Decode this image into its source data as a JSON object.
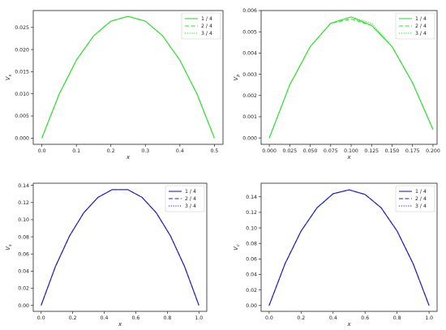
{
  "chart_data": [
    {
      "type": "line",
      "title": "",
      "xlabel": "x",
      "ylabel": "V_s",
      "ylabel_main": "V",
      "ylabel_sub": "s",
      "xlim": [
        -0.025,
        0.525
      ],
      "ylim": [
        -0.0014,
        0.0288
      ],
      "xticks": [
        0.0,
        0.1,
        0.2,
        0.3,
        0.4,
        0.5
      ],
      "xtick_labels": [
        "0.0",
        "0.1",
        "0.2",
        "0.3",
        "0.4",
        "0.5"
      ],
      "yticks": [
        0.0,
        0.005,
        0.01,
        0.015,
        0.02,
        0.025
      ],
      "ytick_labels": [
        "0.000",
        "0.005",
        "0.010",
        "0.015",
        "0.020",
        "0.025"
      ],
      "legend_position": "top-right",
      "color": "#33dd33",
      "series": [
        {
          "name": "1 / 4",
          "style": "solid",
          "x": [
            0,
            0.05,
            0.1,
            0.15,
            0.2,
            0.25,
            0.3,
            0.35,
            0.4,
            0.45,
            0.5
          ],
          "values": [
            0,
            0.0099,
            0.0176,
            0.0231,
            0.0264,
            0.0275,
            0.0264,
            0.0231,
            0.0176,
            0.0099,
            0
          ]
        },
        {
          "name": "2 / 4",
          "style": "dashed",
          "x": [
            0,
            0.05,
            0.1,
            0.15,
            0.2,
            0.25,
            0.3,
            0.35,
            0.4,
            0.45,
            0.5
          ],
          "values": [
            0,
            0.0099,
            0.0176,
            0.0231,
            0.0264,
            0.0275,
            0.0264,
            0.0231,
            0.0176,
            0.0099,
            0
          ]
        },
        {
          "name": "3 / 4",
          "style": "dotted",
          "x": [
            0,
            0.05,
            0.1,
            0.15,
            0.2,
            0.25,
            0.3,
            0.35,
            0.4,
            0.45,
            0.5
          ],
          "values": [
            0,
            0.0099,
            0.0176,
            0.0231,
            0.0264,
            0.0275,
            0.0264,
            0.0231,
            0.0176,
            0.0099,
            0
          ]
        }
      ]
    },
    {
      "type": "line",
      "title": "",
      "xlabel": "x",
      "ylabel": "V_p",
      "ylabel_main": "V",
      "ylabel_sub": "p",
      "xlim": [
        -0.01,
        0.205
      ],
      "ylim": [
        -0.0003,
        0.006
      ],
      "xticks": [
        0.0,
        0.025,
        0.05,
        0.075,
        0.1,
        0.125,
        0.15,
        0.175,
        0.2
      ],
      "xtick_labels": [
        "0.000",
        "0.025",
        "0.050",
        "0.075",
        "0.100",
        "0.125",
        "0.150",
        "0.175",
        "0.200"
      ],
      "yticks": [
        0.0,
        0.001,
        0.002,
        0.003,
        0.004,
        0.005,
        0.006
      ],
      "ytick_labels": [
        "0.000",
        "0.001",
        "0.002",
        "0.003",
        "0.004",
        "0.005",
        "0.006"
      ],
      "legend_position": "top-right",
      "color": "#33dd33",
      "series": [
        {
          "name": "1 / 4",
          "style": "solid",
          "x": [
            0,
            0.025,
            0.05,
            0.075,
            0.1,
            0.125,
            0.15,
            0.175,
            0.2
          ],
          "values": [
            0,
            0.0025,
            0.0043,
            0.0054,
            0.0057,
            0.0053,
            0.0043,
            0.0026,
            0.0004
          ]
        },
        {
          "name": "2 / 4",
          "style": "dashed",
          "x": [
            0,
            0.025,
            0.05,
            0.075,
            0.1,
            0.125,
            0.15,
            0.175,
            0.2
          ],
          "values": [
            0,
            0.0025,
            0.0043,
            0.0054,
            0.0056,
            0.0053,
            0.0043,
            0.0026,
            0.0004
          ]
        },
        {
          "name": "3 / 4",
          "style": "dotted",
          "x": [
            0,
            0.025,
            0.05,
            0.075,
            0.1,
            0.125,
            0.15,
            0.175,
            0.2
          ],
          "values": [
            0,
            0.0025,
            0.0043,
            0.0054,
            0.0057,
            0.0054,
            0.0043,
            0.0026,
            0.0004
          ]
        }
      ]
    },
    {
      "type": "line",
      "title": "",
      "xlabel": "x",
      "ylabel": "V_s",
      "ylabel_main": "V",
      "ylabel_sub": "s",
      "xlim": [
        -0.05,
        1.05
      ],
      "ylim": [
        -0.007,
        0.1425
      ],
      "xticks": [
        0.0,
        0.2,
        0.4,
        0.6,
        0.8,
        1.0
      ],
      "xtick_labels": [
        "0.0",
        "0.2",
        "0.4",
        "0.6",
        "0.8",
        "1.0"
      ],
      "yticks": [
        0.0,
        0.02,
        0.04,
        0.06,
        0.08,
        0.1,
        0.12,
        0.14
      ],
      "ytick_labels": [
        "0.00",
        "0.02",
        "0.04",
        "0.06",
        "0.08",
        "0.10",
        "0.12",
        "0.14"
      ],
      "legend_position": "top-right",
      "color": "#2222bb",
      "series": [
        {
          "name": "1 / 4",
          "style": "solid",
          "x": [
            0,
            0.09,
            0.18,
            0.27,
            0.36,
            0.45,
            0.55,
            0.64,
            0.73,
            0.82,
            0.91,
            1.0
          ],
          "values": [
            0,
            0.045,
            0.081,
            0.108,
            0.126,
            0.135,
            0.135,
            0.126,
            0.108,
            0.081,
            0.045,
            0
          ]
        },
        {
          "name": "2 / 4",
          "style": "dashed",
          "x": [
            0,
            0.09,
            0.18,
            0.27,
            0.36,
            0.45,
            0.55,
            0.64,
            0.73,
            0.82,
            0.91,
            1.0
          ],
          "values": [
            0,
            0.045,
            0.081,
            0.108,
            0.126,
            0.135,
            0.135,
            0.126,
            0.108,
            0.081,
            0.045,
            0
          ]
        },
        {
          "name": "3 / 4",
          "style": "dotted",
          "x": [
            0,
            0.09,
            0.18,
            0.27,
            0.36,
            0.45,
            0.55,
            0.64,
            0.73,
            0.82,
            0.91,
            1.0
          ],
          "values": [
            0,
            0.045,
            0.081,
            0.108,
            0.126,
            0.135,
            0.135,
            0.126,
            0.108,
            0.081,
            0.045,
            0
          ]
        }
      ]
    },
    {
      "type": "line",
      "title": "",
      "xlabel": "x",
      "ylabel": "V_c",
      "ylabel_main": "V",
      "ylabel_sub": "c",
      "xlim": [
        -0.05,
        1.05
      ],
      "ylim": [
        -0.0075,
        0.1575
      ],
      "xticks": [
        0.0,
        0.2,
        0.4,
        0.6,
        0.8,
        1.0
      ],
      "xtick_labels": [
        "0.0",
        "0.2",
        "0.4",
        "0.6",
        "0.8",
        "1.0"
      ],
      "yticks": [
        0.0,
        0.02,
        0.04,
        0.06,
        0.08,
        0.1,
        0.12,
        0.14
      ],
      "ytick_labels": [
        "0.00",
        "0.02",
        "0.04",
        "0.06",
        "0.08",
        "0.10",
        "0.12",
        "0.14"
      ],
      "legend_position": "top-right",
      "color": "#2222bb",
      "series": [
        {
          "name": "1 / 4",
          "style": "solid",
          "x": [
            0,
            0.1,
            0.2,
            0.3,
            0.4,
            0.5,
            0.6,
            0.7,
            0.8,
            0.9,
            1.0
          ],
          "values": [
            0,
            0.054,
            0.096,
            0.126,
            0.144,
            0.149,
            0.143,
            0.126,
            0.096,
            0.054,
            0
          ]
        },
        {
          "name": "2 / 4",
          "style": "dashed",
          "x": [
            0,
            0.1,
            0.2,
            0.3,
            0.4,
            0.5,
            0.6,
            0.7,
            0.8,
            0.9,
            1.0
          ],
          "values": [
            0,
            0.054,
            0.096,
            0.126,
            0.144,
            0.149,
            0.143,
            0.126,
            0.096,
            0.054,
            0
          ]
        },
        {
          "name": "3 / 4",
          "style": "dotted",
          "x": [
            0,
            0.1,
            0.2,
            0.3,
            0.4,
            0.5,
            0.6,
            0.7,
            0.8,
            0.9,
            1.0
          ],
          "values": [
            0,
            0.054,
            0.096,
            0.126,
            0.144,
            0.149,
            0.143,
            0.126,
            0.096,
            0.054,
            0
          ]
        }
      ]
    }
  ]
}
